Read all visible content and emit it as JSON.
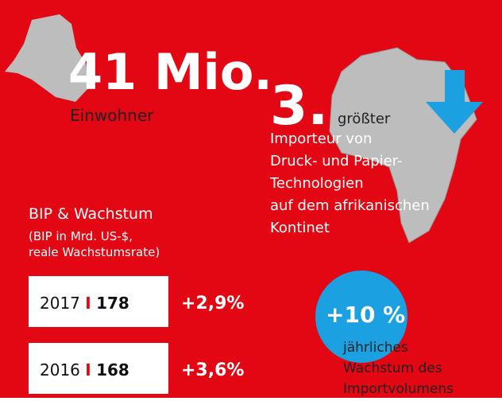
{
  "population": {
    "value": "41 Mio.",
    "label": "Einwohner"
  },
  "importer": {
    "rank": "3.",
    "lines": [
      "größter",
      "Importeur von",
      "Druck- und Papier-",
      "Technologien",
      "auf dem afrikanischen",
      "Kontinet"
    ]
  },
  "gdp": {
    "title": "BIP & Wachstum",
    "subtitle": [
      "(BIP in Mrd. US-$,",
      "reale Wachstumsrate)"
    ],
    "separator": "I",
    "rows": [
      {
        "year": "2017",
        "gdp": "178",
        "growth": "+2,9%"
      },
      {
        "year": "2016",
        "gdp": "168",
        "growth": "+3,6%"
      }
    ]
  },
  "imports": {
    "value": "+10 %",
    "lines": [
      "jährliches",
      "Wachstum des",
      "Importvolumens"
    ]
  }
}
